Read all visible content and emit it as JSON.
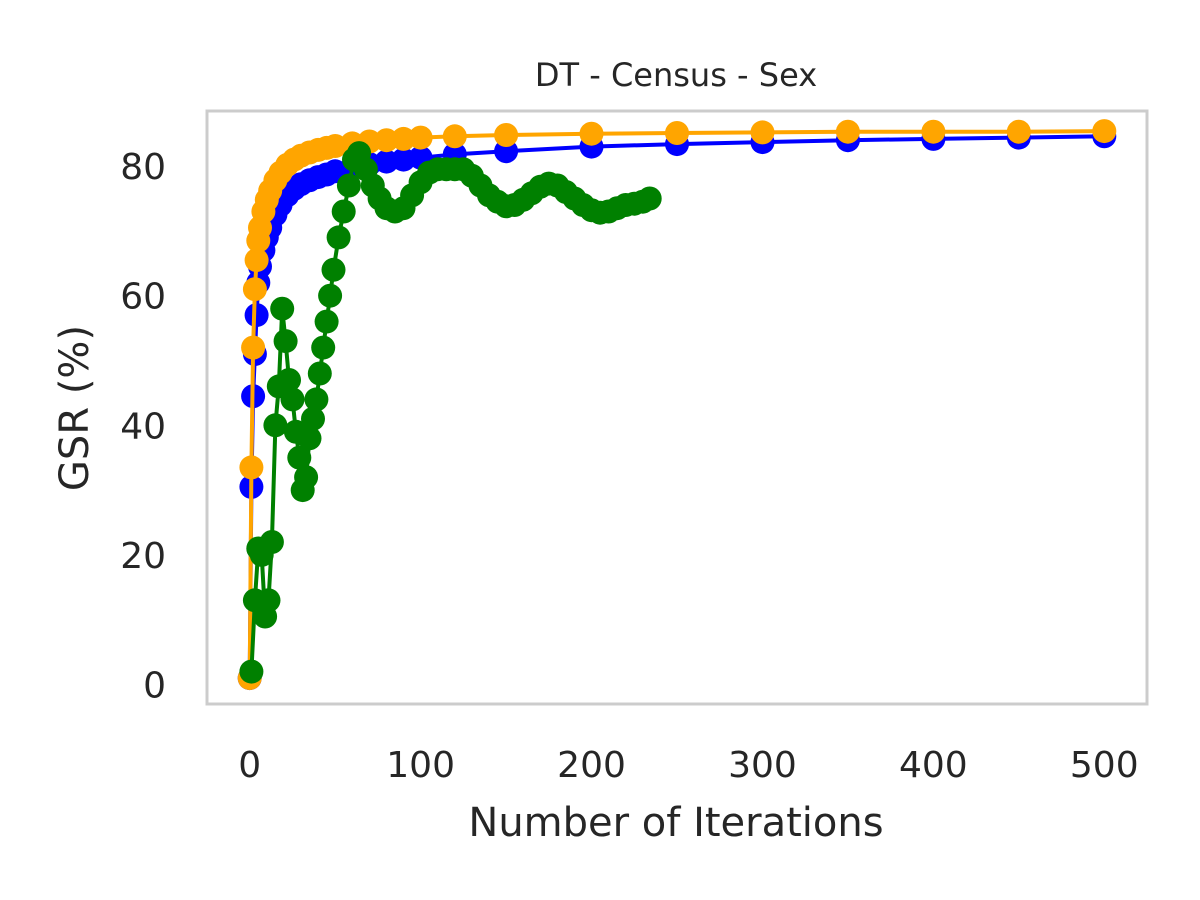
{
  "chart_data": {
    "type": "line",
    "title": "DT - Census - Sex",
    "xlabel": "Number of Iterations",
    "ylabel": "GSR (%)",
    "xlim": [
      -25,
      525
    ],
    "ylim": [
      -3,
      88.5
    ],
    "xticks": [
      0,
      100,
      200,
      300,
      400,
      500
    ],
    "yticks": [
      0,
      20,
      40,
      60,
      80
    ],
    "grid": false,
    "legend": "none",
    "series": [
      {
        "color": "#0000ff",
        "x": [
          0,
          1,
          2,
          3,
          4,
          5,
          6,
          8,
          10,
          12,
          15,
          18,
          22,
          26,
          30,
          35,
          40,
          45,
          50,
          60,
          70,
          80,
          90,
          100,
          120,
          150,
          200,
          250,
          300,
          350,
          400,
          450,
          500
        ],
        "y": [
          1,
          30.5,
          44.5,
          51,
          57,
          62,
          64.5,
          67,
          69,
          70.5,
          72.5,
          74,
          75.5,
          76.5,
          77.2,
          77.8,
          78.3,
          78.7,
          79.2,
          79.8,
          80.3,
          80.7,
          81,
          81.3,
          81.8,
          82.3,
          83,
          83.4,
          83.7,
          84,
          84.2,
          84.4,
          84.6
        ]
      },
      {
        "color": "#ffa500",
        "x": [
          0,
          1,
          2,
          3,
          4,
          5,
          6,
          8,
          10,
          12,
          15,
          18,
          22,
          26,
          30,
          35,
          40,
          45,
          50,
          60,
          70,
          80,
          90,
          100,
          120,
          150,
          200,
          250,
          300,
          350,
          400,
          450,
          500
        ],
        "y": [
          1,
          33.5,
          52,
          61,
          65.5,
          68.5,
          70.5,
          73,
          74.8,
          76.2,
          77.8,
          79,
          80.2,
          81,
          81.6,
          82.1,
          82.5,
          82.8,
          83.1,
          83.5,
          83.8,
          84,
          84.2,
          84.4,
          84.6,
          84.8,
          85,
          85.1,
          85.2,
          85.3,
          85.3,
          85.3,
          85.4
        ]
      },
      {
        "color": "#008000",
        "x": [
          1,
          3,
          5,
          7,
          9,
          11,
          13,
          15,
          17,
          19,
          21,
          23,
          25,
          27,
          29,
          31,
          33,
          35,
          37,
          39,
          41,
          43,
          45,
          47,
          49,
          52,
          55,
          58,
          61,
          64,
          68,
          72,
          76,
          80,
          85,
          90,
          95,
          100,
          105,
          110,
          115,
          120,
          125,
          130,
          135,
          140,
          145,
          150,
          155,
          160,
          165,
          170,
          175,
          180,
          185,
          190,
          195,
          200,
          205,
          210,
          215,
          220,
          225,
          230,
          234
        ],
        "y": [
          2,
          13,
          21,
          20,
          10.5,
          13,
          22,
          40,
          46,
          58,
          53,
          47,
          44,
          39,
          35,
          30,
          32,
          38,
          41,
          44,
          48,
          52,
          56,
          60,
          64,
          69,
          73,
          77,
          81,
          82,
          79.5,
          77,
          75,
          73.5,
          73,
          73.5,
          75.5,
          77.5,
          79,
          79.5,
          79.5,
          79.5,
          79.5,
          78.5,
          77,
          75.5,
          74.5,
          73.8,
          74,
          74.8,
          75.8,
          76.8,
          77.3,
          77,
          76,
          75,
          74,
          73.2,
          72.8,
          73,
          73.5,
          74,
          74.2,
          74.5,
          75
        ]
      }
    ]
  }
}
